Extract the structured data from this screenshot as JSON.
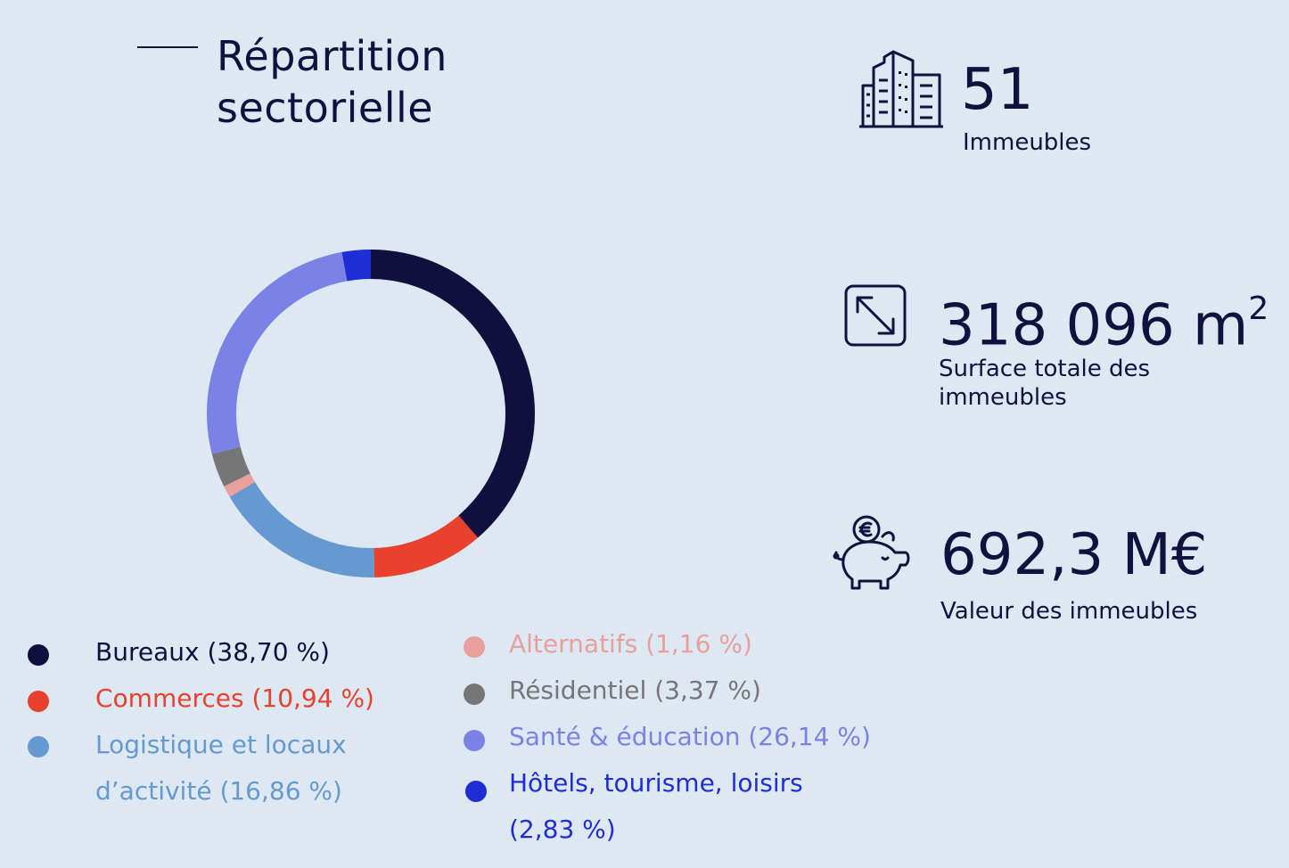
{
  "title": {
    "line1": "Répartition",
    "line2": "sectorielle"
  },
  "chart_data": {
    "type": "pie",
    "variant": "donut",
    "title": "Répartition sectorielle",
    "start_angle_deg": 0,
    "direction": "clockwise",
    "slices": [
      {
        "label": "Bureaux (38,70 %)",
        "name": "Bureaux",
        "value": 38.7,
        "color": "#10103f"
      },
      {
        "label": "Commerces (10,94 %)",
        "name": "Commerces",
        "value": 10.94,
        "color": "#e8412d"
      },
      {
        "label": "Logistique et locaux d’activité (16,86 %)",
        "name": "Logistique et locaux d’activité",
        "value": 16.86,
        "color": "#6699d0"
      },
      {
        "label": "Alternatifs (1,16 %)",
        "name": "Alternatifs",
        "value": 1.16,
        "color": "#e99f9c"
      },
      {
        "label": "Résidentiel (3,37 %)",
        "name": "Résidentiel",
        "value": 3.37,
        "color": "#767676"
      },
      {
        "label": "Santé & éducation (26,14 %)",
        "name": "Santé & éducation",
        "value": 26.14,
        "color": "#7b82e6"
      },
      {
        "label": "Hôtels, tourisme, loisirs (2,83 %)",
        "name": "Hôtels, tourisme, loisirs",
        "value": 2.83,
        "color": "#1f2dd4"
      }
    ]
  },
  "legend": {
    "bureaux": "Bureaux (38,70 %)",
    "commerces": "Commerces (10,94 %)",
    "logistique_1": "Logistique et locaux",
    "logistique_2": "d’activité (16,86 %)",
    "alternatifs": "Alternatifs (1,16 %)",
    "residentiel": "Résidentiel (3,37 %)",
    "sante": "Santé & éducation (26,14 %)",
    "hotels_1": "Hôtels, tourisme, loisirs",
    "hotels_2": "(2,83 %)"
  },
  "stats": {
    "buildings": {
      "value": "51",
      "label": "Immeubles",
      "icon": "buildings-icon"
    },
    "surface": {
      "value": "318 096 m",
      "value_sup": "2",
      "label_1": "Surface totale des",
      "label_2": "immeubles",
      "icon": "resize-arrow-icon"
    },
    "valuation": {
      "value": "692,3 M€",
      "label": "Valeur des immeubles",
      "icon": "piggy-bank-euro-icon"
    }
  }
}
